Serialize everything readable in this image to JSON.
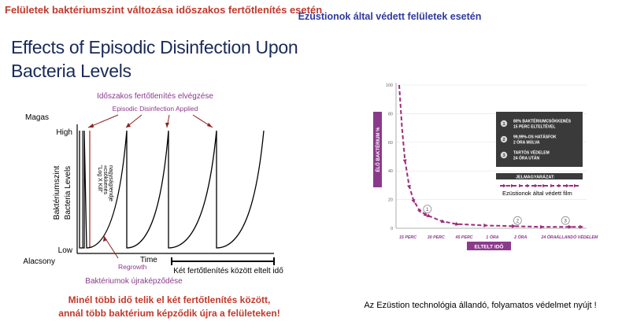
{
  "headers": {
    "left": "Felületek baktériumszint változása időszakos fertőtlenítés esetén",
    "right": "Ezüstionok által védett felületek esetén"
  },
  "left_panel": {
    "title_line1": "Effects of Episodic Disinfection Upon",
    "title_line2": "Bacteria Levels",
    "caption_line1": "Minél több idő telik el két fertőtlenítés között,",
    "caption_line2": "annál több baktérium képződik újra a felületeken!"
  },
  "right_panel": {
    "caption": "Az Ezüstion technológia állandó, folyamatos védelmet nyújt !"
  },
  "chart_data": [
    {
      "type": "line",
      "title": "Effects of Episodic Disinfection Upon Bacteria Levels",
      "annotations": {
        "hu_disinfection": "Időszakos fertőtlenítés elvégzése",
        "en_disinfection": "Episodic Disinfection Applied",
        "log_kill_1": "\"Log X Kill\"",
        "log_kill_2": "«csökkenés",
        "log_kill_3": "nagyságrendje",
        "regrowth_en": "Regrowth",
        "regrowth_hu": "Baktériumok újraképződése",
        "interval": "Két fertőtlenítés között eltelt idő"
      },
      "ylabel_hu": "Baktériumszint",
      "ylabel_en": "Bacteria Levels",
      "xlabel": "Time",
      "y_ticks": {
        "top_hu": "Magas",
        "top_en": "High",
        "bottom_en": "Low",
        "bottom_hu": "Alacsony"
      },
      "cycles": 5,
      "series": [
        {
          "values": [
            "High",
            "Low",
            "High",
            "Low",
            "High",
            "Low",
            "High",
            "Low",
            "High",
            "Low",
            "High"
          ]
        }
      ]
    },
    {
      "type": "line",
      "ylabel": "ÉLŐ BAKTÉRIUM %",
      "xlabel": "ELTELT IDŐ",
      "ylim": [
        0,
        100
      ],
      "y_ticks": [
        "0",
        "20",
        "40",
        "60",
        "80",
        "100"
      ],
      "categories": [
        "15 PERC",
        "30 PERC",
        "45 PERC",
        "1 ÓRA",
        "2 ÓRA",
        "24 ÓRA",
        "ÁLLANDÓ VÉDELEM"
      ],
      "series": [
        {
          "name": "Ezüstionok által védett film",
          "x": [
            0.0,
            0.1,
            0.2,
            0.35,
            0.5,
            0.7,
            0.9,
            1.0,
            1.5,
            2.0,
            3.0,
            4.0,
            5.0,
            6.0,
            6.4
          ],
          "values": [
            100,
            70,
            48,
            30,
            20,
            13,
            10,
            9,
            5,
            3,
            2,
            1.5,
            1,
            1,
            1
          ]
        }
      ],
      "markers": [
        {
          "label": "1",
          "x": 1.0
        },
        {
          "label": "2",
          "x": 4.2
        },
        {
          "label": "3",
          "x": 5.9
        }
      ],
      "legend_box": {
        "items": [
          {
            "num": "1",
            "line1": "80% BAKTÉRIUMCSÖKKENÉS",
            "line2": "15 PERC ELTELTÉVEL"
          },
          {
            "num": "2",
            "line1": "99,99%-OS HATÁSFOK",
            "line2": "2 ÓRA MÚLVA"
          },
          {
            "num": "3",
            "line1": "TARTÓS VÉDELEM",
            "line2": "24 ÓRA UTÁN"
          }
        ],
        "legend_title": "JELMAGYARÁZAT:"
      },
      "colors": {
        "series": "#9b2d7d",
        "box": "#3a3a3a"
      }
    }
  ]
}
